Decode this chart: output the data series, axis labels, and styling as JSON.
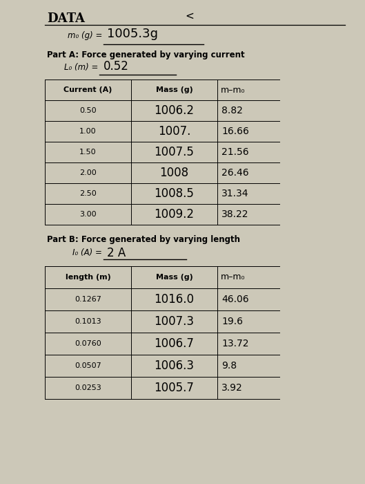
{
  "bg_color": "#ccc8b8",
  "title": "DATA",
  "page_symbol": "<",
  "m0_label": "m₀ (g) =",
  "m0_value": "1005.3g",
  "partA_label": "Part A: Force generated by varying current",
  "L0_label": "L₀ (m) =",
  "L0_value": "0.52",
  "tableA_headers": [
    "Current (A)",
    "Mass (g)",
    "m–m₀"
  ],
  "tableA_col1": [
    "0.50",
    "1.00",
    "1.50",
    "2.00",
    "2.50",
    "3.00"
  ],
  "tableA_col2": [
    "1006.2",
    "1007.",
    "1007.5",
    "1008",
    "1008.5",
    "1009.2"
  ],
  "tableA_col3": [
    "8.82",
    "16.66",
    "21.56",
    "26.46",
    "31.34",
    "38.22"
  ],
  "partB_label": "Part B: Force generated by varying length",
  "I0_label": "I₀ (A) =",
  "I0_value": "2 A",
  "tableB_headers": [
    "length (m)",
    "Mass (g)",
    "m–m₀"
  ],
  "tableB_col1": [
    "0.1267",
    "0.1013",
    "0.0760",
    "0.0507",
    "0.0253"
  ],
  "tableB_col2": [
    "1016.0",
    "1007.3",
    "1006.7",
    "1006.3",
    "1005.7"
  ],
  "tableB_col3": [
    "46.06",
    "19.6",
    "13.72",
    "9.8",
    "3.92"
  ]
}
